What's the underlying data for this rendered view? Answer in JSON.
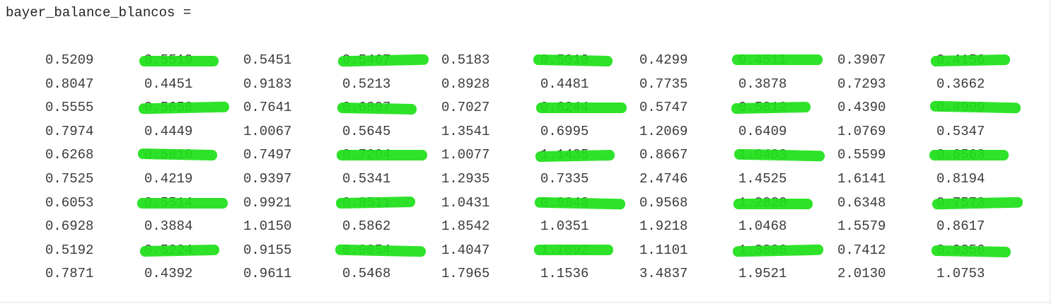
{
  "header": {
    "text": "bayer_balance_blancos ="
  },
  "matrix": {
    "rows": [
      [
        "0.5209",
        "0.5519",
        "0.5451",
        "0.5467",
        "0.5183",
        "0.5010",
        "0.4299",
        "0.4511",
        "0.3907",
        "0.4156"
      ],
      [
        "0.8047",
        "0.4451",
        "0.9183",
        "0.5213",
        "0.8928",
        "0.4481",
        "0.7735",
        "0.3878",
        "0.7293",
        "0.3662"
      ],
      [
        "0.5555",
        "0.5658",
        "0.7641",
        "0.6807",
        "0.7027",
        "0.6244",
        "0.5747",
        "0.5812",
        "0.4390",
        "0.4909"
      ],
      [
        "0.7974",
        "0.4449",
        "1.0067",
        "0.5645",
        "1.3541",
        "0.6995",
        "1.2069",
        "0.6409",
        "1.0769",
        "0.5347"
      ],
      [
        "0.6268",
        "0.5810",
        "0.7497",
        "0.7204",
        "1.0077",
        "1.1435",
        "0.8667",
        "1.0403",
        "0.5599",
        "0.6563"
      ],
      [
        "0.7525",
        "0.4219",
        "0.9397",
        "0.5341",
        "1.2935",
        "0.7335",
        "2.4746",
        "1.4525",
        "1.6141",
        "0.8194"
      ],
      [
        "0.6053",
        "0.5514",
        "0.9921",
        "0.8511",
        "1.0431",
        "0.9840",
        "0.9568",
        "1.2020",
        "0.6348",
        "0.7573"
      ],
      [
        "0.6928",
        "0.3884",
        "1.0150",
        "0.5862",
        "1.8542",
        "1.0351",
        "1.9218",
        "1.0468",
        "1.5579",
        "0.8617"
      ],
      [
        "0.5192",
        "0.5224",
        "0.9155",
        "0.9054",
        "1.4047",
        "1.7092",
        "1.1101",
        "1.3806",
        "0.7412",
        "0.9356"
      ],
      [
        "0.7871",
        "0.4392",
        "0.9611",
        "0.5468",
        "1.7965",
        "1.1536",
        "3.4837",
        "1.9521",
        "2.0130",
        "1.0753"
      ]
    ],
    "highlight_color": "#1ee01a",
    "highlighted_rows": [
      0,
      2,
      4,
      6,
      8
    ],
    "highlighted_cols": [
      1,
      3,
      5,
      7,
      9
    ]
  }
}
